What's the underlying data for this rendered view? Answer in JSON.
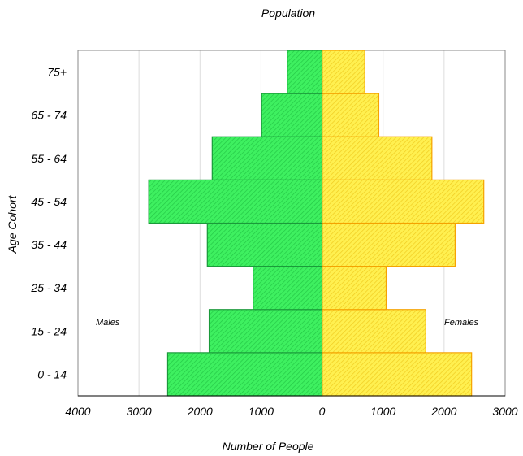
{
  "chart_data": {
    "type": "bar",
    "orientation": "horizontal",
    "title": "Population",
    "xlabel": "Number of People",
    "ylabel": "Age Cohort",
    "categories": [
      "0 - 14",
      "15 - 24",
      "25 - 34",
      "35 - 44",
      "45 - 54",
      "55 - 64",
      "65 - 74",
      "75+"
    ],
    "series": [
      {
        "name": "Males",
        "values": [
          2530,
          1850,
          1130,
          1880,
          2840,
          1800,
          990,
          570
        ],
        "color": "#33ee55",
        "stroke": "#1a9a3a"
      },
      {
        "name": "Females",
        "values": [
          2450,
          1700,
          1050,
          2180,
          2650,
          1800,
          930,
          700
        ],
        "color": "#ffee44",
        "stroke": "#f5a200"
      }
    ],
    "xlim": [
      -4000,
      3000
    ],
    "xticks": [
      -4000,
      -3000,
      -2000,
      -1000,
      0,
      1000,
      2000,
      3000
    ],
    "xtick_labels": [
      "4000",
      "3000",
      "2000",
      "1000",
      "0",
      "1000",
      "2000",
      "3000"
    ],
    "annotations": {
      "left": "Males",
      "right": "Females"
    },
    "grid": true,
    "legend": "none"
  }
}
